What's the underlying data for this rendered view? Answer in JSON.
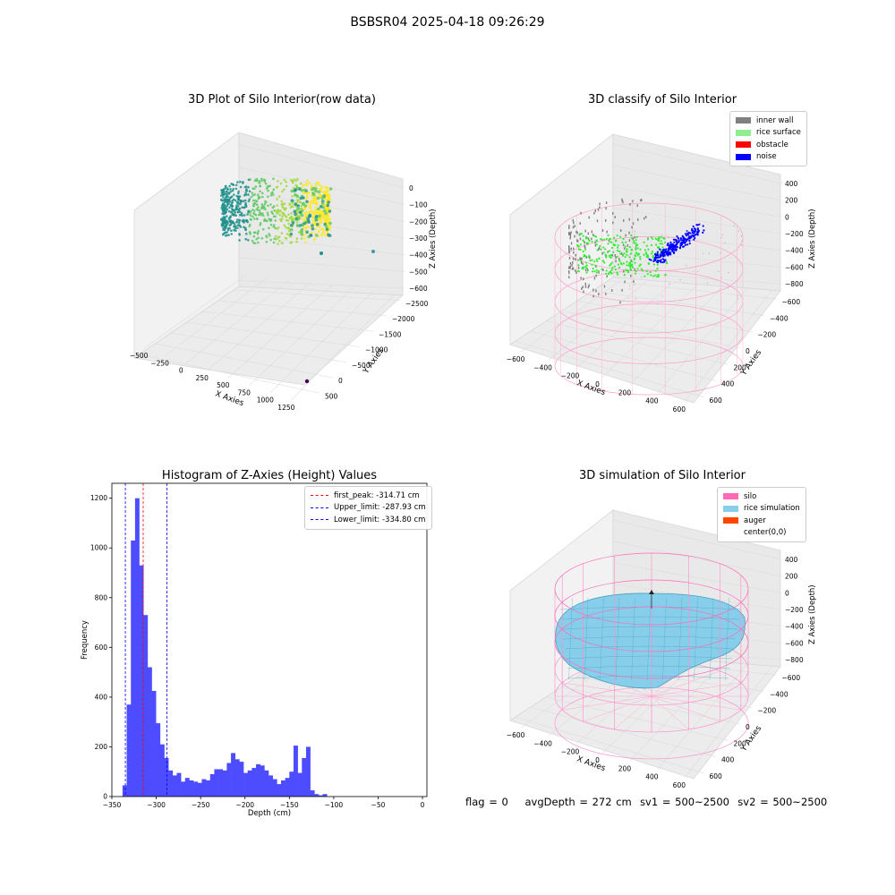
{
  "figure": {
    "title": "BSBSR04 2025-04-18 09:26:29",
    "status": {
      "flag": "flag = 0",
      "avg_depth": "avgDepth = 272 cm",
      "sv1": "sv1 = 500~2500",
      "sv2": "sv2 = 500~2500"
    }
  },
  "chart_data": [
    {
      "type": "scatter",
      "title": "3D Plot of Silo Interior(row data)",
      "xlabel": "X Axies",
      "ylabel": "Y Axies",
      "zlabel": "Z Axies (Depth)",
      "x_ticks": [
        -500,
        -250,
        0,
        250,
        500,
        750,
        1000,
        1250
      ],
      "y_ticks": [
        500,
        0,
        -500,
        -1000,
        -1500,
        -2000,
        -2500
      ],
      "z_ticks": [
        0,
        -100,
        -200,
        -300,
        -400,
        -500,
        -600
      ],
      "colormap": "viridis"
    },
    {
      "type": "scatter",
      "title": "3D classify of Silo Interior",
      "xlabel": "X Axies",
      "ylabel": "Y Axies",
      "zlabel": "Z Axies (Depth)",
      "x_ticks": [
        -600,
        -400,
        -200,
        0,
        200,
        400,
        600
      ],
      "y_ticks": [
        600,
        400,
        200,
        0,
        -200,
        -400,
        -600
      ],
      "z_ticks": [
        400,
        200,
        0,
        -200,
        -400,
        -600,
        -800
      ],
      "legend": [
        {
          "label": "inner wall",
          "color": "#808080"
        },
        {
          "label": "rice surface",
          "color": "#90ee90"
        },
        {
          "label": "obstacle",
          "color": "#ff0000"
        },
        {
          "label": "noise",
          "color": "#0000ff"
        }
      ],
      "legend_position": "top-right"
    },
    {
      "type": "bar",
      "title": "Histogram of Z-Axies (Height) Values",
      "xlabel": "Depth (cm)",
      "ylabel": "Frequency",
      "xlim": [
        -350,
        5
      ],
      "ylim": [
        0,
        1260
      ],
      "x_ticks": [
        -350,
        -300,
        -250,
        -200,
        -150,
        -100,
        -50,
        0
      ],
      "y_ticks": [
        0,
        200,
        400,
        600,
        800,
        1000,
        1200
      ],
      "bar_color": "#4d4dff",
      "bin_start": -338,
      "bin_width": 4.7,
      "values": [
        45,
        370,
        1030,
        1200,
        930,
        730,
        520,
        425,
        295,
        210,
        155,
        105,
        85,
        95,
        60,
        75,
        65,
        60,
        55,
        70,
        65,
        90,
        110,
        110,
        105,
        135,
        175,
        150,
        140,
        95,
        105,
        115,
        130,
        125,
        105,
        85,
        70,
        50,
        65,
        75,
        100,
        205,
        95,
        155,
        200,
        25,
        10,
        5,
        10
      ],
      "reference_lines": [
        {
          "label": "first_peak: -314.71 cm",
          "value": -314.71,
          "color": "#ff0000"
        },
        {
          "label": "Upper_limit: -287.93 cm",
          "value": -287.93,
          "color": "#0000ff"
        },
        {
          "label": "Lower_limit: -334.80 cm",
          "value": -334.8,
          "color": "#0000ff"
        }
      ],
      "legend_position": "top-right"
    },
    {
      "type": "area",
      "title": "3D simulation of Silo Interior",
      "xlabel": "X Axies",
      "ylabel": "Y Axies",
      "zlabel": "Z Axies (Depth)",
      "x_ticks": [
        -600,
        -400,
        -200,
        0,
        200,
        400,
        600
      ],
      "y_ticks": [
        600,
        400,
        200,
        0,
        -200,
        -400,
        -600
      ],
      "z_ticks": [
        400,
        200,
        0,
        -200,
        -400,
        -600,
        -800
      ],
      "legend": [
        {
          "label": "silo",
          "color": "#ff69b4"
        },
        {
          "label": "rice simulation",
          "color": "#87ceeb"
        },
        {
          "label": "auger",
          "color": "#ff4500"
        },
        {
          "label": "center(0,0)",
          "color": "#ffffff"
        }
      ],
      "legend_position": "top-right"
    }
  ]
}
